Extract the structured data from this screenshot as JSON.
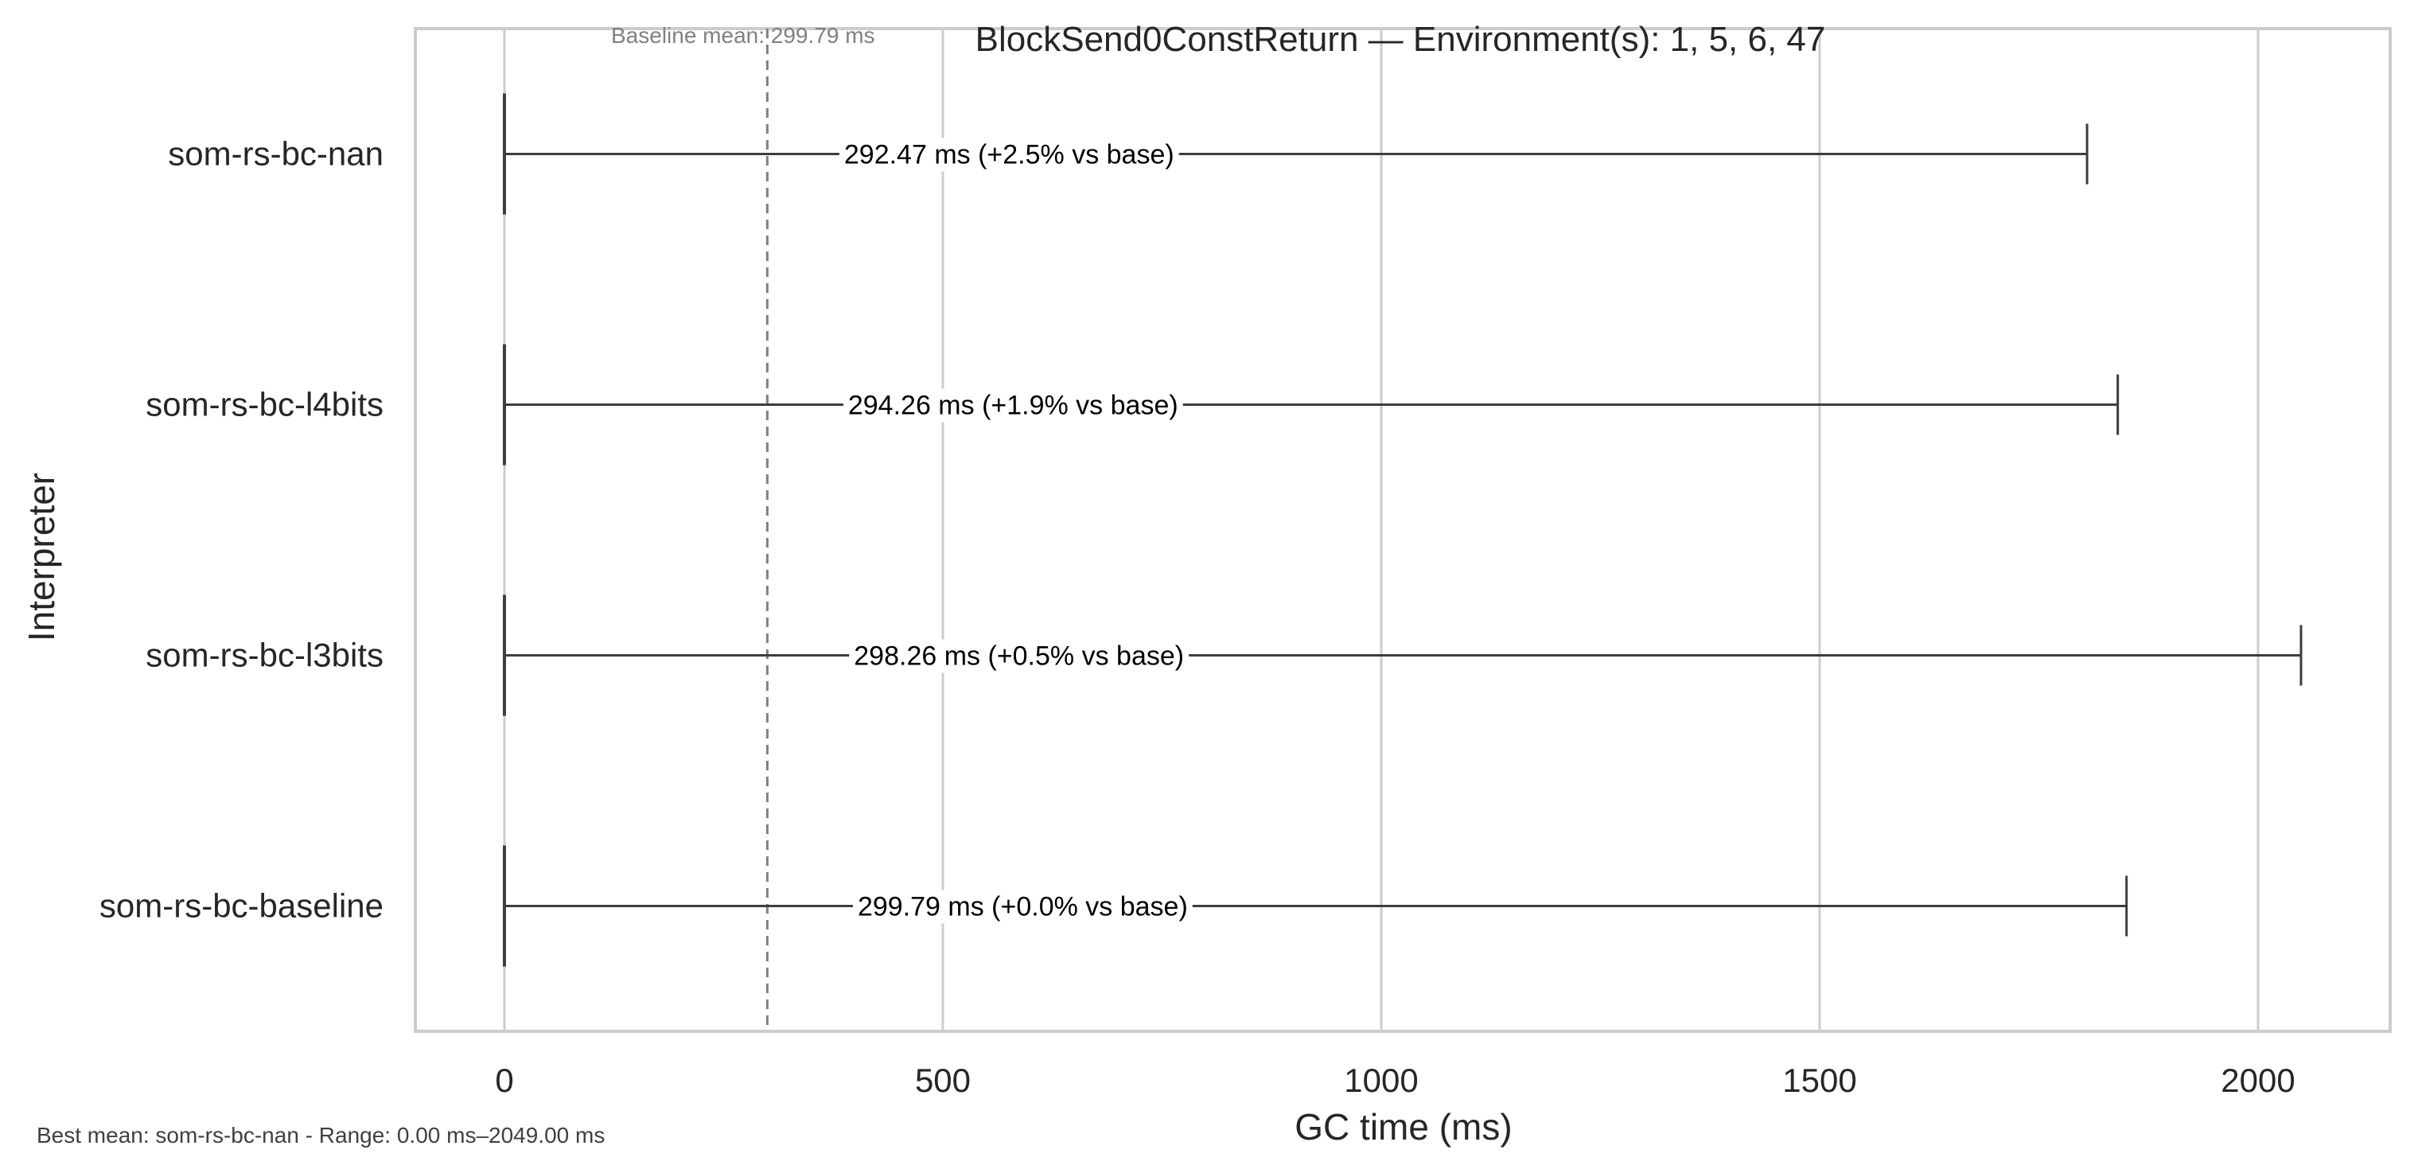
{
  "chart_data": {
    "type": "box",
    "orientation": "horizontal",
    "title": "BlockSend0ConstReturn — Environment(s): 1, 5, 6, 47",
    "xlabel": "GC time (ms)",
    "ylabel": "Interpreter",
    "xlim": [
      -100,
      2150
    ],
    "xticks": [
      0,
      500,
      1000,
      1500,
      2000
    ],
    "xtick_labels": [
      "0",
      "500",
      "1000",
      "1500",
      "2000"
    ],
    "grid": "vertical",
    "categories": [
      "som-rs-bc-nan",
      "som-rs-bc-l4bits",
      "som-rs-bc-l3bits",
      "som-rs-bc-baseline"
    ],
    "series": [
      {
        "min": 0,
        "max": 1805,
        "mean": 292.47,
        "label": "292.47 ms  (+2.5% vs base)"
      },
      {
        "min": 0,
        "max": 1840,
        "mean": 294.26,
        "label": "294.26 ms  (+1.9% vs base)"
      },
      {
        "min": 0,
        "max": 2049,
        "mean": 298.26,
        "label": "298.26 ms  (+0.5% vs base)"
      },
      {
        "min": 0,
        "max": 1850,
        "mean": 299.79,
        "label": "299.79 ms  (+0.0% vs base)"
      }
    ],
    "baseline": {
      "value": 299.79,
      "label": "Baseline mean: 299.79 ms"
    },
    "footnote": "Best mean: som-rs-bc-nan - Range: 0.00 ms–2049.00 ms",
    "colors": {
      "whisker": "#3d3d3d",
      "grid": "#cccccc",
      "frame": "#cccccc",
      "baseline": "#808080"
    }
  }
}
